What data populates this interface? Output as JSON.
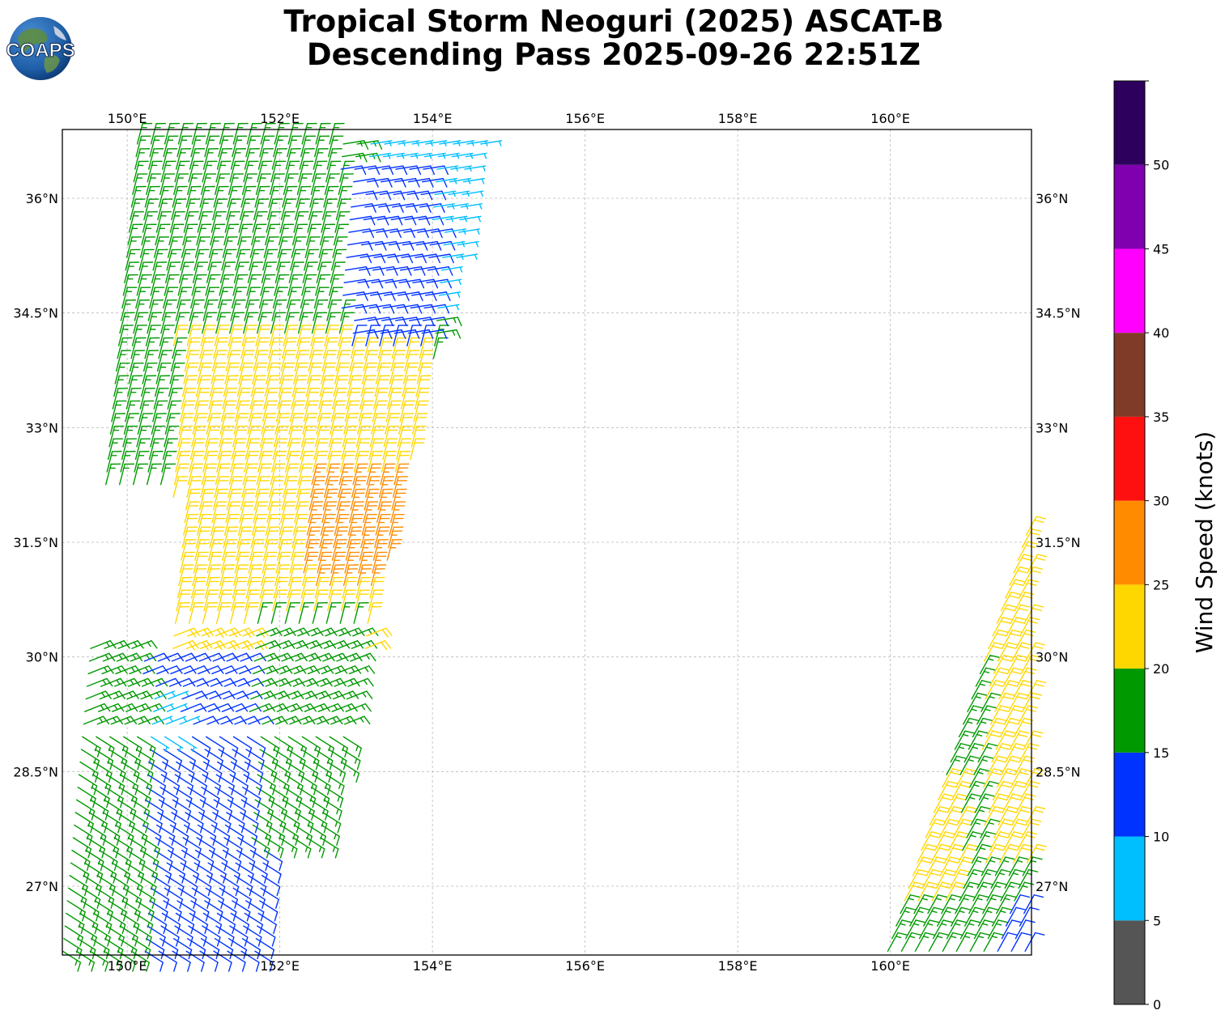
{
  "header": {
    "title_line1": "Tropical Storm Neoguri (2025) ASCAT-B",
    "title_line2": "Descending Pass 2025-09-26 22:51Z",
    "logo_text": "COAPS"
  },
  "chart_data": {
    "type": "wind-barb map",
    "lon_range": [
      149.15,
      161.85
    ],
    "lat_range": [
      26.1,
      36.9
    ],
    "lon_ticks": [
      "150°E",
      "152°E",
      "154°E",
      "156°E",
      "158°E",
      "160°E"
    ],
    "lon_tick_values": [
      150,
      152,
      154,
      156,
      158,
      160
    ],
    "lat_ticks": [
      "36°N",
      "34.5°N",
      "33°N",
      "31.5°N",
      "30°N",
      "28.5°N",
      "27°N"
    ],
    "lat_tick_values": [
      36,
      34.5,
      33,
      31.5,
      30,
      28.5,
      27
    ],
    "grid": true,
    "colorbar": {
      "label": "Wind Speed (knots)",
      "ticks": [
        "0",
        "5",
        "10",
        "15",
        "20",
        "25",
        "30",
        "35",
        "40",
        "45",
        "50"
      ],
      "bounds": [
        0,
        5,
        10,
        15,
        20,
        25,
        30,
        35,
        40,
        45,
        50,
        55
      ],
      "colors": [
        "#555555",
        "#00bfff",
        "#0033ff",
        "#009900",
        "#ffd700",
        "#ff8c00",
        "#ff1010",
        "#803a28",
        "#ff00ff",
        "#8000b0",
        "#2e005e"
      ]
    },
    "swaths": [
      {
        "name": "western swath",
        "left_edge": [
          [
            149.15,
            26.1
          ],
          [
            150.15,
            36.9
          ]
        ],
        "right_edge": [
          [
            152.3,
            26.1
          ],
          [
            154.7,
            36.7
          ]
        ],
        "speed_regions": [
          {
            "lon_range": [
              149.15,
              154.8
            ],
            "lat_range": [
              32.2,
              37.0
            ],
            "speed_knots": 18
          },
          {
            "lon_range": [
              150.6,
              154.0
            ],
            "lat_range": [
              30.0,
              34.2
            ],
            "speed_knots": 22
          },
          {
            "lon_range": [
              152.3,
              153.7
            ],
            "lat_range": [
              30.9,
              32.4
            ],
            "speed_knots": 27
          },
          {
            "lon_range": [
              153.1,
              154.8
            ],
            "lat_range": [
              34.4,
              37.0
            ],
            "speed_knots": 8
          },
          {
            "lon_range": [
              152.8,
              154.0
            ],
            "lat_range": [
              34.0,
              36.4
            ],
            "speed_knots": 12
          },
          {
            "lon_range": [
              149.15,
              151.8
            ],
            "lat_range": [
              26.1,
              30.0
            ],
            "speed_knots": 12
          },
          {
            "lon_range": [
              150.0,
              150.7
            ],
            "lat_range": [
              28.9,
              29.6
            ],
            "speed_knots": 8
          },
          {
            "lon_range": [
              149.15,
              150.2
            ],
            "lat_range": [
              26.1,
              30.2
            ],
            "speed_knots": 17
          },
          {
            "lon_range": [
              151.6,
              153.0
            ],
            "lat_range": [
              27.5,
              30.6
            ],
            "speed_knots": 17
          }
        ]
      },
      {
        "name": "eastern swath",
        "left_edge": [
          [
            159.95,
            26.1
          ],
          [
            161.85,
            31.8
          ]
        ],
        "right_edge": [
          [
            161.85,
            26.1
          ],
          [
            161.85,
            31.8
          ]
        ],
        "speed_regions": [
          {
            "lon_range": [
              159.95,
              161.85
            ],
            "lat_range": [
              26.1,
              31.8
            ],
            "speed_knots": 18
          },
          {
            "lon_range": [
              159.95,
              160.9
            ],
            "lat_range": [
              26.7,
              28.3
            ],
            "speed_knots": 22
          },
          {
            "lon_range": [
              161.2,
              161.85
            ],
            "lat_range": [
              27.2,
              31.8
            ],
            "speed_knots": 22
          },
          {
            "lon_range": [
              161.4,
              161.85
            ],
            "lat_range": [
              26.1,
              26.7
            ],
            "speed_knots": 12
          }
        ]
      }
    ]
  }
}
